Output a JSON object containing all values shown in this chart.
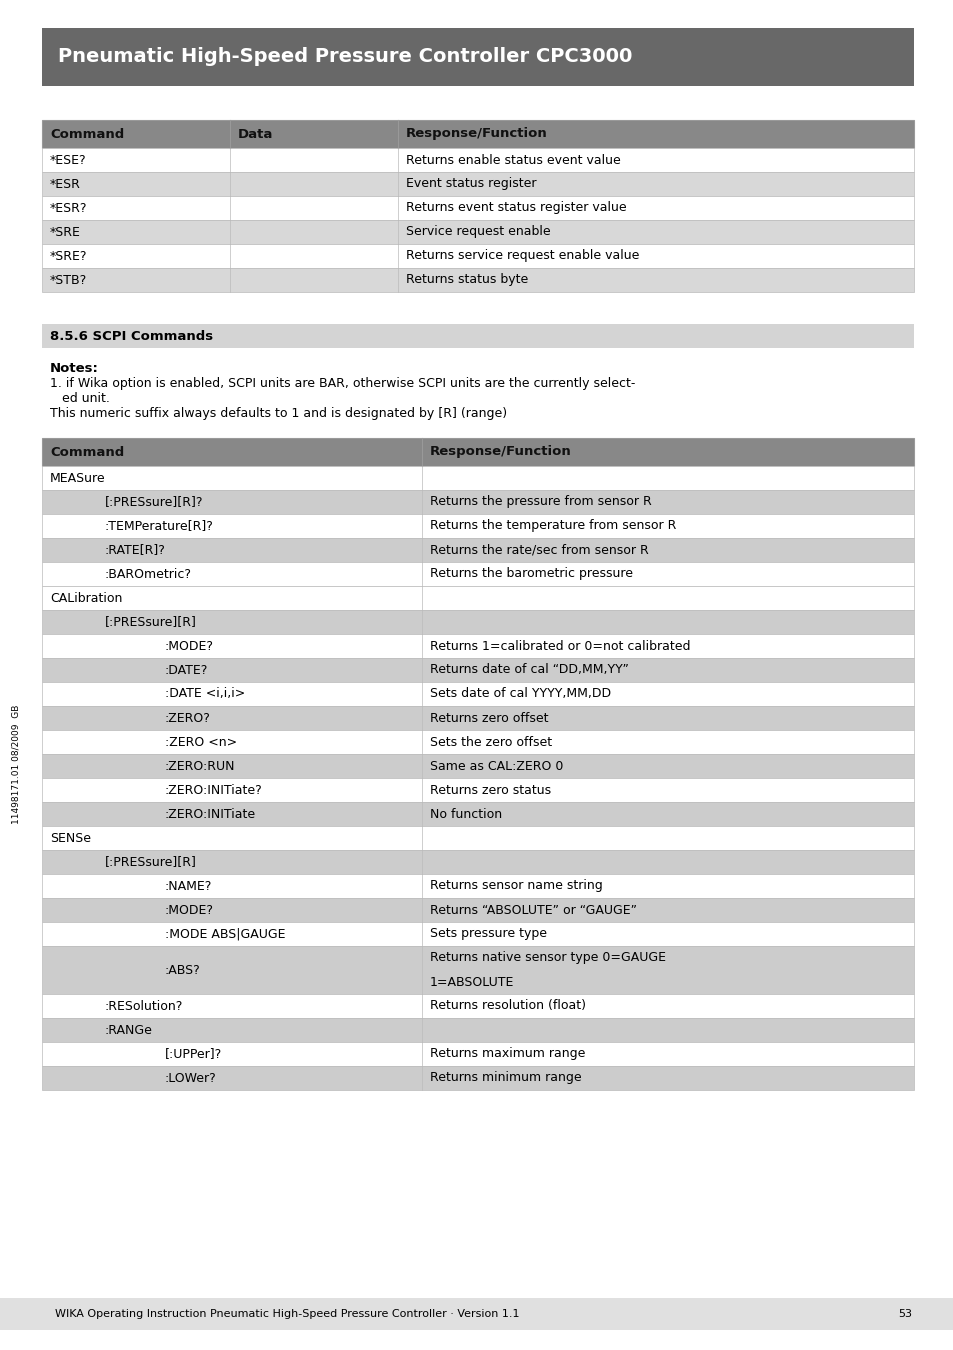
{
  "title": "Pneumatic High-Speed Pressure Controller CPC3000",
  "title_bg": "#686868",
  "title_color": "#ffffff",
  "section1_header": [
    "Command",
    "Data",
    "Response/Function"
  ],
  "section1_header_bg": "#888888",
  "section1_rows": [
    [
      "*ESE?",
      "",
      "Returns enable status event value"
    ],
    [
      "*ESR",
      "",
      "Event status register"
    ],
    [
      "*ESR?",
      "",
      "Returns event status register value"
    ],
    [
      "*SRE",
      "",
      "Service request enable"
    ],
    [
      "*SRE?",
      "",
      "Returns service request enable value"
    ],
    [
      "*STB?",
      "",
      "Returns status byte"
    ]
  ],
  "section_label": "8.5.6 SCPI Commands",
  "section_label_bg": "#d4d4d4",
  "notes_title": "Notes:",
  "notes_line1": "1. if Wika option is enabled, SCPI units are BAR, otherwise SCPI units are the currently select-",
  "notes_line2": "   ed unit.",
  "notes_line3": "This numeric suffix always defaults to 1 and is designated by [R] (range)",
  "section2_header": [
    "Command",
    "Response/Function"
  ],
  "section2_header_bg": "#888888",
  "section2_rows": [
    {
      "cmd": "MEASure",
      "indent": 0,
      "response": "",
      "bg": "#ffffff"
    },
    {
      "cmd": "[:PRESsure][R]?",
      "indent": 1,
      "response": "Returns the pressure from sensor R",
      "bg": "#cccccc"
    },
    {
      "cmd": ":TEMPerature[R]?",
      "indent": 1,
      "response": "Returns the temperature from sensor R",
      "bg": "#ffffff"
    },
    {
      "cmd": ":RATE[R]?",
      "indent": 1,
      "response": "Returns the rate/sec from sensor R",
      "bg": "#cccccc"
    },
    {
      "cmd": ":BAROmetric?",
      "indent": 1,
      "response": "Returns the barometric pressure",
      "bg": "#ffffff"
    },
    {
      "cmd": "CALibration",
      "indent": 0,
      "response": "",
      "bg": "#ffffff"
    },
    {
      "cmd": "[:PRESsure][R]",
      "indent": 1,
      "response": "",
      "bg": "#cccccc"
    },
    {
      "cmd": ":MODE?",
      "indent": 2,
      "response": "Returns 1=calibrated or 0=not calibrated",
      "bg": "#ffffff"
    },
    {
      "cmd": ":DATE?",
      "indent": 2,
      "response": "Returns date of cal “DD,MM,YY”",
      "bg": "#cccccc"
    },
    {
      "cmd": ":DATE <i,i,i>",
      "indent": 2,
      "response": "Sets date of cal YYYY,MM,DD",
      "bg": "#ffffff"
    },
    {
      "cmd": ":ZERO?",
      "indent": 2,
      "response": "Returns zero offset",
      "bg": "#cccccc"
    },
    {
      "cmd": ":ZERO <n>",
      "indent": 2,
      "response": "Sets the zero offset",
      "bg": "#ffffff"
    },
    {
      "cmd": ":ZERO:RUN",
      "indent": 2,
      "response": "Same as CAL:ZERO 0",
      "bg": "#cccccc"
    },
    {
      "cmd": ":ZERO:INITiate?",
      "indent": 2,
      "response": "Returns zero status",
      "bg": "#ffffff"
    },
    {
      "cmd": ":ZERO:INITiate",
      "indent": 2,
      "response": "No function",
      "bg": "#cccccc"
    },
    {
      "cmd": "SENSe",
      "indent": 0,
      "response": "",
      "bg": "#ffffff"
    },
    {
      "cmd": "[:PRESsure][R]",
      "indent": 1,
      "response": "",
      "bg": "#cccccc"
    },
    {
      "cmd": ":NAME?",
      "indent": 2,
      "response": "Returns sensor name string",
      "bg": "#ffffff"
    },
    {
      "cmd": ":MODE?",
      "indent": 2,
      "response": "Returns “ABSOLUTE” or “GAUGE”",
      "bg": "#cccccc"
    },
    {
      "cmd": ":MODE ABS|GAUGE",
      "indent": 2,
      "response": "Sets pressure type",
      "bg": "#ffffff"
    },
    {
      "cmd": ":ABS?",
      "indent": 2,
      "response": "Returns native sensor type 0=GAUGE\n1=ABSOLUTE",
      "bg": "#cccccc"
    },
    {
      "cmd": ":RESolution?",
      "indent": 1,
      "response": "Returns resolution (float)",
      "bg": "#ffffff"
    },
    {
      "cmd": ":RANGe",
      "indent": 1,
      "response": "",
      "bg": "#cccccc"
    },
    {
      "cmd": "[:UPPer]?",
      "indent": 2,
      "response": "Returns maximum range",
      "bg": "#ffffff"
    },
    {
      "cmd": ":LOWer?",
      "indent": 2,
      "response": "Returns minimum range",
      "bg": "#cccccc"
    }
  ],
  "footer_text": "WIKA Operating Instruction Pneumatic High-Speed Pressure Controller · Version 1.1",
  "footer_page": "53",
  "sidebar_text": "11498171.01 08/2009  GB",
  "page_bg": "#ffffff"
}
